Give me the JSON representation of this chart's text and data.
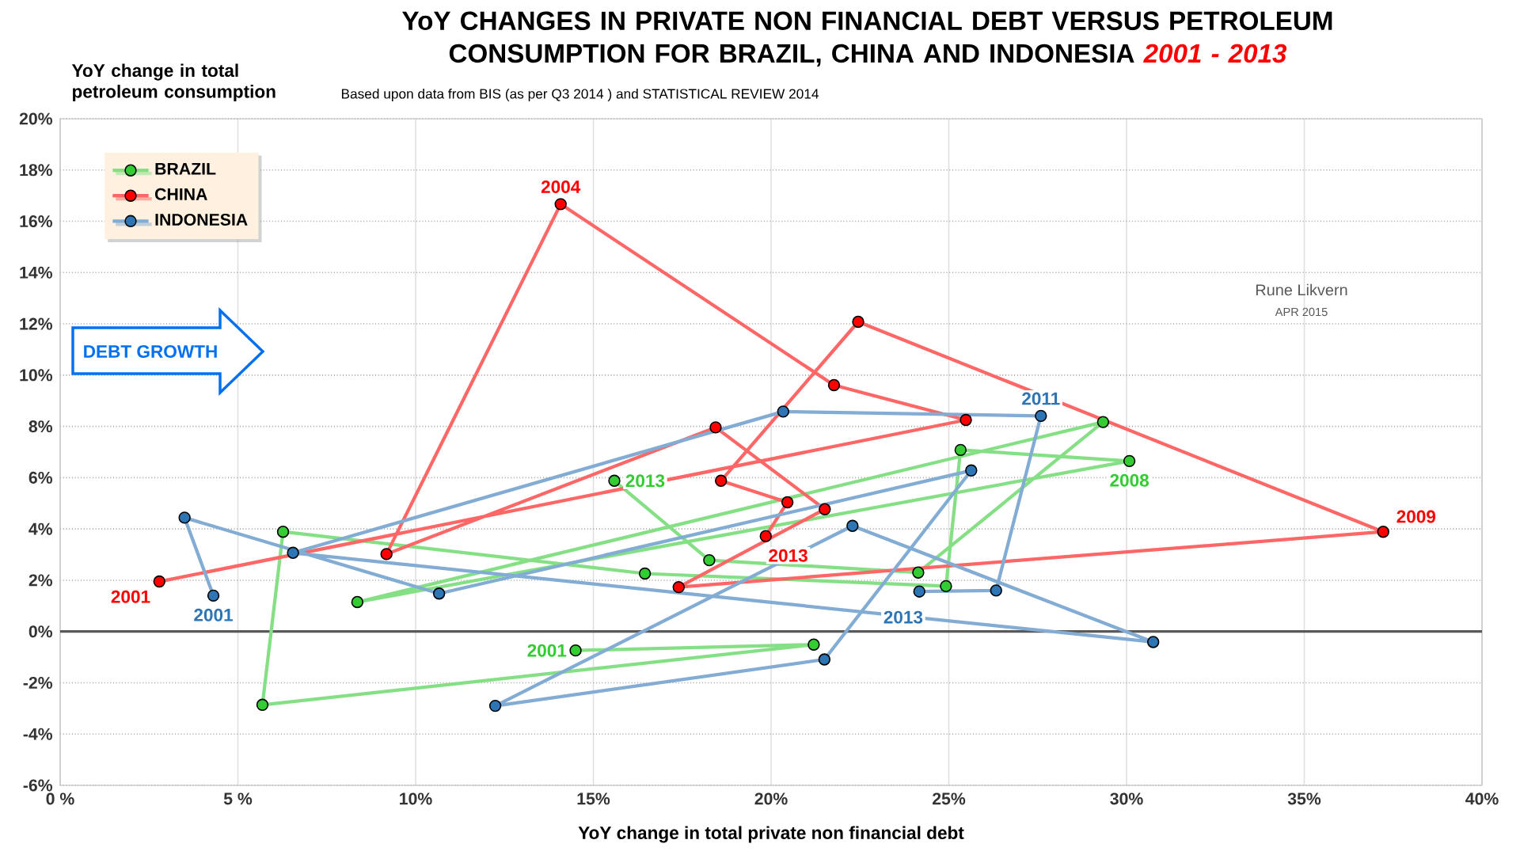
{
  "chart_data": {
    "type": "line",
    "title": "YoY CHANGES IN PRIVATE NON FINANCIAL DEBT VERSUS PETROLEUM CONSUMPTION FOR BRAZIL, CHINA AND INDONESIA",
    "subtitle": "Based upon data from BIS (as per Q3 2014 ) and STATISTICAL REVIEW 2014",
    "xlabel": "YoY change in total private non financial debt",
    "ylabel": "YoY  change in total petroleum consumption",
    "xlim": [
      0,
      40
    ],
    "ylim": [
      -6,
      20
    ],
    "xticks": [
      {
        "value": 0,
        "label": "0 %"
      },
      {
        "value": 5,
        "label": "5 %"
      },
      {
        "value": 10,
        "label": "10%"
      },
      {
        "value": 15,
        "label": "15%"
      },
      {
        "value": 20,
        "label": "20%"
      },
      {
        "value": 25,
        "label": "25%"
      },
      {
        "value": 30,
        "label": "30%"
      },
      {
        "value": 35,
        "label": "35%"
      },
      {
        "value": 40,
        "label": "40%"
      }
    ],
    "yticks": [
      {
        "value": -6,
        "label": "-6%"
      },
      {
        "value": -4,
        "label": "-4%"
      },
      {
        "value": -2,
        "label": "-2%"
      },
      {
        "value": 0,
        "label": "0%"
      },
      {
        "value": 2,
        "label": "2%"
      },
      {
        "value": 4,
        "label": "4%"
      },
      {
        "value": 6,
        "label": "6%"
      },
      {
        "value": 8,
        "label": "8%"
      },
      {
        "value": 10,
        "label": "10%"
      },
      {
        "value": 12,
        "label": "12%"
      },
      {
        "value": 14,
        "label": "14%"
      },
      {
        "value": 16,
        "label": "16%"
      },
      {
        "value": 18,
        "label": "18%"
      },
      {
        "value": 20,
        "label": "20%"
      }
    ],
    "grid": true,
    "legend": "top left",
    "marker": "circle",
    "line_style": "solid",
    "series": [
      {
        "name": "BRAZIL",
        "color": "#33cc33",
        "x": [
          14.5,
          21.2,
          5.69,
          6.27,
          16.45,
          24.92,
          25.33,
          30.08,
          8.36,
          29.34,
          24.14,
          18.26,
          15.59
        ],
        "values": [
          -0.74,
          -0.51,
          -2.86,
          3.89,
          2.26,
          1.77,
          7.08,
          6.65,
          1.15,
          8.17,
          2.3,
          2.78,
          5.88
        ]
      },
      {
        "name": "CHINA",
        "color": "#ff0000",
        "x": [
          2.79,
          25.48,
          21.77,
          14.08,
          9.18,
          18.44,
          21.51,
          17.4,
          37.22,
          22.45,
          18.59,
          20.46,
          19.85
        ],
        "values": [
          1.95,
          8.25,
          9.61,
          16.67,
          3.02,
          7.96,
          4.77,
          1.73,
          3.89,
          12.08,
          5.88,
          5.04,
          3.72
        ]
      },
      {
        "name": "INDONESIA",
        "color": "#2e75b6",
        "x": [
          4.31,
          3.5,
          10.66,
          25.63,
          21.5,
          12.24,
          22.29,
          30.75,
          6.55,
          20.34,
          27.59,
          26.33,
          24.17
        ],
        "values": [
          1.4,
          4.44,
          1.48,
          6.28,
          -1.09,
          -2.9,
          4.12,
          -0.41,
          3.07,
          8.58,
          8.41,
          1.6,
          1.56
        ]
      }
    ],
    "ref_lines": [
      {
        "axis": "y",
        "value": 0,
        "color": "#595959"
      }
    ],
    "annotations": [
      {
        "text": "2001",
        "x": 14.5,
        "y": -0.74
      },
      {
        "text": "2013",
        "x": 15.59,
        "y": 5.88
      },
      {
        "text": "2008",
        "x": 30.08,
        "y": 6.65
      },
      {
        "text": "2001",
        "x": 2.79,
        "y": 1.95
      },
      {
        "text": "2004",
        "x": 14.08,
        "y": 16.67
      },
      {
        "text": "2009",
        "x": 37.22,
        "y": 3.89
      },
      {
        "text": "2013",
        "x": 19.85,
        "y": 3.72
      },
      {
        "text": "2001",
        "x": 4.31,
        "y": 1.4
      },
      {
        "text": "2011",
        "x": 27.59,
        "y": 8.41
      },
      {
        "text": "2013",
        "x": 24.17,
        "y": 1.56
      },
      "DEBT GROWTH",
      "Rune Likvern",
      "APR 2015",
      "2001 - 2013"
    ]
  }
}
